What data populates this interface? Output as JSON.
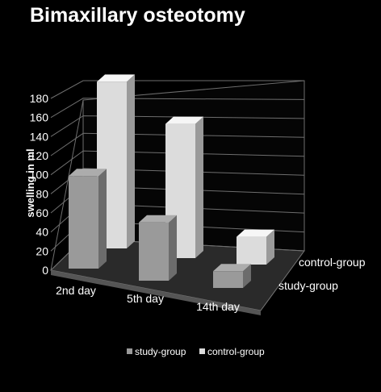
{
  "chart_data": {
    "type": "bar",
    "title": "Bimaxillary osteotomy",
    "ylabel": "swelling in ml",
    "xlabel": "",
    "ylim": [
      0,
      180
    ],
    "yticks": [
      0,
      20,
      40,
      60,
      80,
      100,
      120,
      140,
      160,
      180
    ],
    "categories": [
      "2nd day",
      "5th day",
      "14th day"
    ],
    "series": [
      {
        "name": "study-group",
        "values": [
          100,
          63,
          18
        ],
        "color": "#9a9a9a"
      },
      {
        "name": "control-group",
        "values": [
          180,
          145,
          30
        ],
        "color": "#dcdcdc"
      }
    ],
    "grid": true,
    "legend": "bottom",
    "depth_labels": [
      "study-group",
      "control-group"
    ]
  }
}
